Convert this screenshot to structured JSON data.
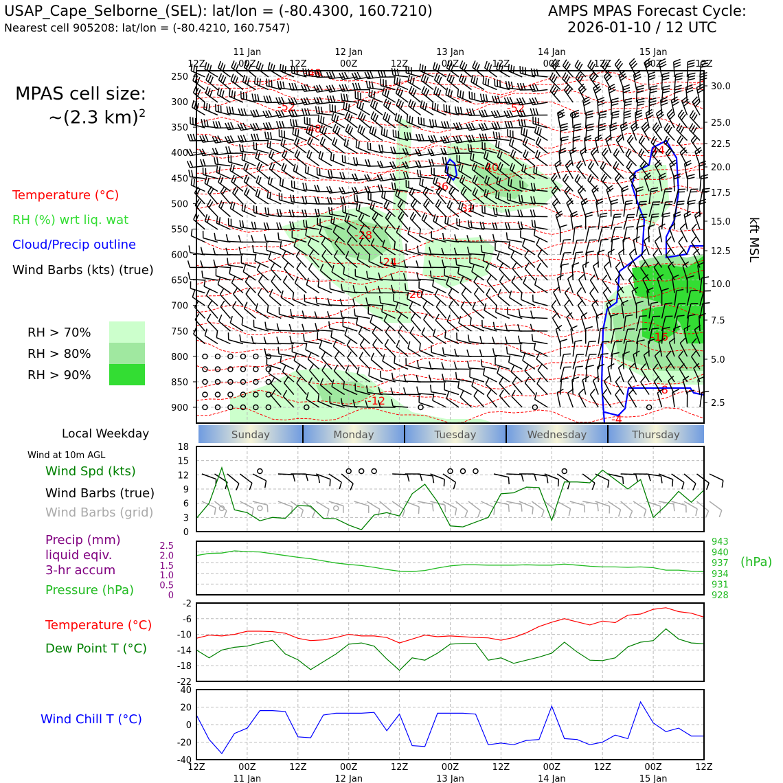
{
  "header": {
    "station": "USAP_Cape_Selborne_(SEL): lat/lon = (-80.4300, 160.7210)",
    "nearest_cell": "Nearest cell 905208: lat/lon = (-80.4210, 160.7547)",
    "cycle_title": "AMPS MPAS Forecast Cycle:",
    "cycle_time": "2026-01-10 / 12 UTC",
    "cell_size_label": "MPAS cell size:",
    "cell_size_value": "~(2.3 km)",
    "cell_size_exp": "2"
  },
  "legend": {
    "temperature": "Temperature (°C)",
    "rh": "RH (%) wrt liq. wat",
    "cloud": "Cloud/Precip outline",
    "wind_barbs": "Wind Barbs (kts) (true)",
    "rh70": "RH > 70%",
    "rh80": "RH > 80%",
    "rh90": "RH > 90%"
  },
  "colors": {
    "temp": "#ff0000",
    "rh": "#33dd33",
    "cloud": "#0000ff",
    "rh70": "#ccffcc",
    "rh80": "#a0e8a0",
    "rh90": "#33dd33",
    "wind_spd": "#008000",
    "pressure": "#22bb22",
    "precip": "#800080",
    "dewpoint": "#008000",
    "windchill": "#0000ff",
    "grid_barb": "#aaaaaa"
  },
  "time_axis": {
    "ticks": [
      "12Z",
      "00Z",
      "12Z",
      "00Z",
      "12Z",
      "00Z",
      "12Z",
      "00Z",
      "12Z",
      "00Z",
      "12Z"
    ],
    "dates": [
      "",
      "11 Jan",
      "",
      "12 Jan",
      "",
      "13 Jan",
      "",
      "14 Jan",
      "",
      "15 Jan",
      ""
    ]
  },
  "weekday_band": {
    "label": "Local Weekday",
    "days": [
      "Sunday",
      "Monday",
      "Tuesday",
      "Wednesday",
      "Thursday"
    ]
  },
  "chart_data": [
    {
      "type": "heatmap",
      "panel": "time-height",
      "y_pressure_ticks": [
        250,
        300,
        350,
        400,
        450,
        500,
        550,
        600,
        650,
        700,
        750,
        800,
        850,
        900
      ],
      "ylabel_right": "kft MSL",
      "kft_ticks": [
        "30.0",
        "25.0",
        "22.5",
        "20.0",
        "17.5",
        "15.0",
        "12.5",
        "10.0",
        "7.5",
        "5.0",
        "2.5"
      ],
      "temperature_labels": [
        "-48",
        "-52",
        "-48",
        "-44",
        "-40",
        "-36",
        "-32",
        "-28",
        "-24",
        "-20",
        "-16",
        "-12",
        "-8",
        "-4",
        "-52"
      ],
      "temperature_levels": [
        -48,
        -52,
        -48,
        -44,
        -40,
        -36,
        -32,
        -28,
        -24,
        -20,
        -16,
        -12,
        -8,
        -4
      ]
    },
    {
      "type": "line",
      "panel": "wind",
      "title": "Wind at 10m AGL",
      "labels": [
        "Wind Spd (kts)",
        "Wind Barbs (true)",
        "Wind Barbs (grid)"
      ],
      "y_ticks": [
        "0",
        "3",
        "6",
        "9",
        "12",
        "15",
        "18"
      ],
      "ylim": [
        0,
        18
      ],
      "x": [
        0,
        1,
        2,
        3,
        4,
        5,
        6,
        7,
        8,
        9,
        10,
        11,
        12,
        13,
        14,
        15,
        16,
        17,
        18,
        19,
        20,
        21,
        22,
        23,
        24,
        25,
        26,
        27,
        28,
        29,
        30,
        31,
        32,
        33,
        34,
        35,
        36,
        37,
        38,
        39,
        40
      ],
      "values": [
        2.8,
        6.0,
        13.5,
        4.6,
        4.0,
        2.3,
        3.0,
        2.8,
        5.5,
        5.4,
        2.8,
        2.7,
        1.4,
        0.4,
        3.5,
        4.0,
        3.3,
        8.0,
        10.0,
        6.3,
        1.2,
        1.0,
        2.0,
        3.0,
        8.0,
        8.2,
        9.4,
        9.3,
        2.4,
        10.5,
        10.5,
        10.3,
        13.0,
        11.0,
        9.0,
        11.0,
        3.0,
        5.5,
        8.5,
        6.2,
        8.8
      ]
    },
    {
      "type": "line",
      "panel": "precip-pressure",
      "labels": [
        "Precip (mm)",
        "liquid eqiv.",
        "3-hr accum",
        "Pressure (hPa)"
      ],
      "left_ticks": [
        "0",
        "0.5",
        "1.0",
        "1.5",
        "2.0",
        "2.5"
      ],
      "right_ticks": [
        "928",
        "931",
        "934",
        "937",
        "940",
        "943"
      ],
      "right_unit": "(hPa)",
      "ylim": [
        928,
        943
      ],
      "x": [
        0,
        1,
        2,
        3,
        4,
        5,
        6,
        7,
        8,
        9,
        10,
        11,
        12,
        13,
        14,
        15,
        16,
        17,
        18,
        19,
        20,
        21,
        22,
        23,
        24,
        25,
        26,
        27,
        28,
        29,
        30,
        31,
        32,
        33,
        34,
        35,
        36,
        37,
        38,
        39,
        40
      ],
      "values": [
        939.0,
        939.6,
        939.7,
        940.3,
        940.1,
        940.0,
        939.5,
        939.0,
        938.5,
        938.1,
        937.5,
        936.9,
        936.5,
        936.2,
        935.7,
        935.1,
        934.6,
        934.5,
        934.8,
        935.5,
        936.1,
        936.4,
        936.4,
        936.3,
        936.3,
        936.3,
        936.4,
        936.3,
        936.3,
        936.6,
        936.3,
        936.0,
        935.8,
        935.8,
        935.7,
        935.8,
        935.6,
        934.9,
        934.9,
        934.6,
        934.5
      ]
    },
    {
      "type": "line",
      "panel": "temperature",
      "labels": [
        "Temperature (°C)",
        "Dew Point T (°C)"
      ],
      "y_ticks": [
        "-22",
        "-18",
        "-14",
        "-10",
        "-6",
        "-2"
      ],
      "ylim": [
        -22,
        -2
      ],
      "x": [
        0,
        1,
        2,
        3,
        4,
        5,
        6,
        7,
        8,
        9,
        10,
        11,
        12,
        13,
        14,
        15,
        16,
        17,
        18,
        19,
        20,
        21,
        22,
        23,
        24,
        25,
        26,
        27,
        28,
        29,
        30,
        31,
        32,
        33,
        34,
        35,
        36,
        37,
        38,
        39,
        40
      ],
      "series": [
        {
          "name": "Temperature (°C)",
          "values": [
            -11.0,
            -10.2,
            -10.4,
            -10.0,
            -9.2,
            -9.2,
            -9.3,
            -9.7,
            -11.0,
            -11.6,
            -11.4,
            -10.8,
            -10.0,
            -10.4,
            -10.4,
            -10.8,
            -12.2,
            -11.2,
            -10.2,
            -10.6,
            -10.4,
            -10.6,
            -10.8,
            -10.9,
            -11.5,
            -10.8,
            -9.6,
            -8.0,
            -6.9,
            -6.0,
            -6.8,
            -7.6,
            -6.6,
            -7.0,
            -5.1,
            -4.8,
            -3.6,
            -3.2,
            -4.2,
            -4.6,
            -5.6
          ]
        },
        {
          "name": "Dew Point T (°C)",
          "values": [
            -14.0,
            -16.0,
            -14.0,
            -13.3,
            -13.0,
            -12.2,
            -11.5,
            -15.0,
            -16.5,
            -19.0,
            -17.0,
            -15.0,
            -12.5,
            -12.2,
            -13.0,
            -16.3,
            -19.2,
            -16.0,
            -16.6,
            -14.8,
            -12.5,
            -12.3,
            -12.3,
            -16.6,
            -16.0,
            -17.4,
            -16.6,
            -15.8,
            -14.8,
            -12.0,
            -14.5,
            -16.6,
            -16.7,
            -16.0,
            -13.2,
            -12.0,
            -11.6,
            -8.6,
            -11.2,
            -12.2,
            -12.4
          ]
        }
      ]
    },
    {
      "type": "line",
      "panel": "windchill",
      "labels": [
        "Wind Chill T (°C)"
      ],
      "y_ticks": [
        "-40",
        "-20",
        "0",
        "20",
        "40"
      ],
      "ylim": [
        -40,
        40
      ],
      "x": [
        0,
        1,
        2,
        3,
        4,
        5,
        6,
        7,
        8,
        9,
        10,
        11,
        12,
        13,
        14,
        15,
        16,
        17,
        18,
        19,
        20,
        21,
        22,
        23,
        24,
        25,
        26,
        27,
        28,
        29,
        30,
        31,
        32,
        33,
        34,
        35,
        36,
        37,
        38,
        39,
        40
      ],
      "values": [
        11,
        -17,
        -33,
        -10,
        -4,
        16,
        16,
        15,
        -14,
        -15,
        11,
        13,
        13,
        13,
        14,
        -7,
        12,
        -24,
        -25,
        13,
        13,
        13,
        12,
        -23,
        -21,
        -23,
        -18,
        -17,
        21,
        -16,
        -17,
        -23,
        -20,
        -12,
        -16,
        26,
        2,
        -8,
        -4,
        -13,
        -13
      ]
    }
  ]
}
